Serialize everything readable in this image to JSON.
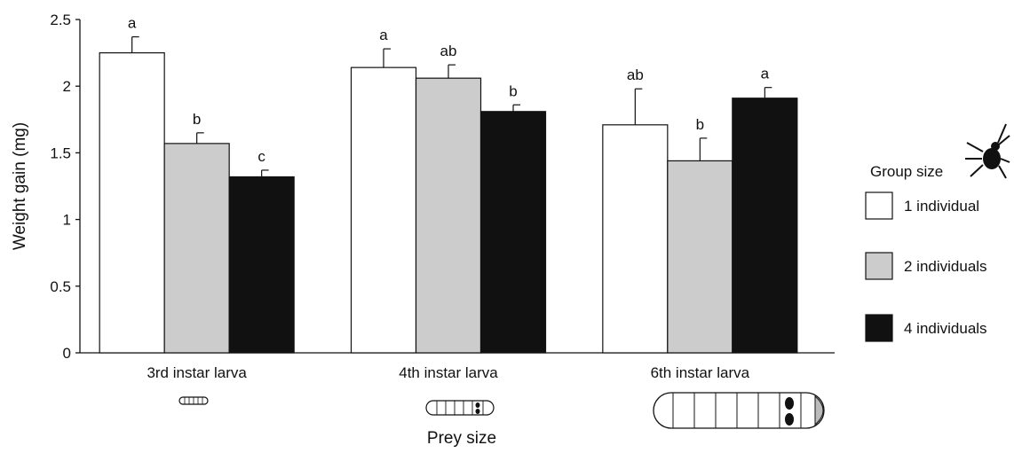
{
  "chart_data": {
    "type": "bar",
    "xlabel": "Prey size",
    "ylabel": "Weight gain (mg)",
    "ylim": [
      0,
      2.5
    ],
    "yticks": [
      "0",
      "0.5",
      "1",
      "1.5",
      "2",
      "2.5"
    ],
    "categories": [
      "3rd instar larva",
      "4th instar larva",
      "6th instar larva"
    ],
    "series": [
      {
        "name": "1 individual",
        "color": "#ffffff",
        "values": [
          2.25,
          2.14,
          1.71
        ],
        "errors": [
          0.12,
          0.14,
          0.27
        ],
        "letters": [
          "a",
          "a",
          "ab"
        ]
      },
      {
        "name": "2 individuals",
        "color": "#cccccc",
        "values": [
          1.57,
          2.06,
          1.44
        ],
        "errors": [
          0.08,
          0.1,
          0.17
        ],
        "letters": [
          "b",
          "ab",
          "b"
        ]
      },
      {
        "name": "4 individuals",
        "color": "#111111",
        "values": [
          1.32,
          1.81,
          1.91
        ],
        "errors": [
          0.05,
          0.05,
          0.08
        ],
        "letters": [
          "c",
          "b",
          "a"
        ]
      }
    ],
    "legend": {
      "title": "Group size",
      "position": "right",
      "icon": "beetle-icon"
    },
    "category_icons": [
      "small-larva-icon",
      "medium-larva-icon",
      "large-larva-icon"
    ]
  }
}
